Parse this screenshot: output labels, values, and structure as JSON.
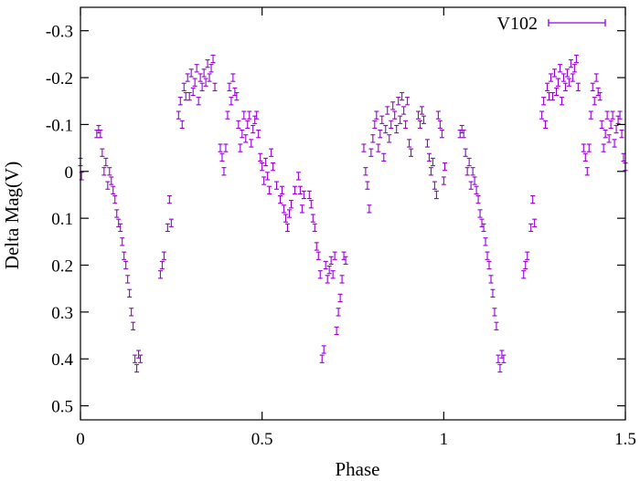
{
  "chart_data": {
    "type": "scatter",
    "xlabel": "Phase",
    "ylabel": "Delta Mag(V)",
    "xlim": [
      0,
      1.5
    ],
    "ylim": [
      -0.35,
      0.53
    ],
    "y_inverted": true,
    "xticks": [
      0,
      0.5,
      1,
      1.5
    ],
    "xtick_labels": [
      "0",
      "0.5",
      "1",
      "1.5"
    ],
    "yticks": [
      -0.3,
      -0.2,
      -0.1,
      0,
      0.1,
      0.2,
      0.3,
      0.4,
      0.5
    ],
    "ytick_labels": [
      "-0.3",
      "-0.2",
      "-0.1",
      "0",
      "0.1",
      "0.2",
      "0.3",
      "0.4",
      "0.5"
    ],
    "grid": false,
    "legend_position": "top-right",
    "error_bar": 0.008,
    "series": [
      {
        "name": "V102",
        "color": "#9400d3",
        "marker": "errorbar",
        "points": [
          [
            0.0,
            -0.02
          ],
          [
            0.003,
            0.01
          ],
          [
            0.045,
            -0.08
          ],
          [
            0.05,
            -0.09
          ],
          [
            0.055,
            -0.08
          ],
          [
            0.06,
            -0.04
          ],
          [
            0.065,
            0.0
          ],
          [
            0.07,
            -0.02
          ],
          [
            0.075,
            0.03
          ],
          [
            0.08,
            0.0
          ],
          [
            0.085,
            0.02
          ],
          [
            0.09,
            0.04
          ],
          [
            0.095,
            0.06
          ],
          [
            0.1,
            0.09
          ],
          [
            0.105,
            0.11
          ],
          [
            0.11,
            0.12
          ],
          [
            0.115,
            0.15
          ],
          [
            0.12,
            0.18
          ],
          [
            0.125,
            0.2
          ],
          [
            0.13,
            0.23
          ],
          [
            0.135,
            0.26
          ],
          [
            0.14,
            0.3
          ],
          [
            0.145,
            0.33
          ],
          [
            0.15,
            0.4
          ],
          [
            0.155,
            0.42
          ],
          [
            0.16,
            0.39
          ],
          [
            0.165,
            0.4
          ],
          [
            0.22,
            0.22
          ],
          [
            0.225,
            0.2
          ],
          [
            0.23,
            0.18
          ],
          [
            0.24,
            0.12
          ],
          [
            0.245,
            0.06
          ],
          [
            0.25,
            0.11
          ],
          [
            0.27,
            -0.12
          ],
          [
            0.275,
            -0.15
          ],
          [
            0.28,
            -0.1
          ],
          [
            0.285,
            -0.18
          ],
          [
            0.29,
            -0.16
          ],
          [
            0.295,
            -0.2
          ],
          [
            0.3,
            -0.16
          ],
          [
            0.305,
            -0.21
          ],
          [
            0.31,
            -0.17
          ],
          [
            0.315,
            -0.19
          ],
          [
            0.32,
            -0.22
          ],
          [
            0.325,
            -0.15
          ],
          [
            0.33,
            -0.2
          ],
          [
            0.335,
            -0.18
          ],
          [
            0.34,
            -0.21
          ],
          [
            0.345,
            -0.19
          ],
          [
            0.35,
            -0.23
          ],
          [
            0.355,
            -0.2
          ],
          [
            0.36,
            -0.22
          ],
          [
            0.365,
            -0.24
          ],
          [
            0.37,
            -0.18
          ],
          [
            0.385,
            -0.05
          ],
          [
            0.39,
            -0.03
          ],
          [
            0.395,
            0.0
          ],
          [
            0.4,
            -0.05
          ],
          [
            0.405,
            -0.12
          ],
          [
            0.41,
            -0.18
          ],
          [
            0.415,
            -0.15
          ],
          [
            0.42,
            -0.2
          ],
          [
            0.425,
            -0.17
          ],
          [
            0.43,
            -0.16
          ],
          [
            0.435,
            -0.1
          ],
          [
            0.44,
            -0.05
          ],
          [
            0.445,
            -0.08
          ],
          [
            0.45,
            -0.12
          ],
          [
            0.455,
            -0.07
          ],
          [
            0.46,
            -0.1
          ],
          [
            0.465,
            -0.12
          ],
          [
            0.47,
            -0.06
          ],
          [
            0.475,
            -0.09
          ],
          [
            0.48,
            -0.11
          ],
          [
            0.485,
            -0.12
          ],
          [
            0.49,
            -0.08
          ],
          [
            0.495,
            -0.03
          ],
          [
            0.5,
            -0.01
          ],
          [
            0.505,
            0.02
          ],
          [
            0.51,
            -0.02
          ],
          [
            0.515,
            0.01
          ],
          [
            0.52,
            0.04
          ],
          [
            0.525,
            -0.04
          ],
          [
            0.53,
            -0.01
          ],
          [
            0.54,
            0.03
          ],
          [
            0.55,
            0.06
          ],
          [
            0.555,
            0.04
          ],
          [
            0.56,
            0.08
          ],
          [
            0.565,
            0.1
          ],
          [
            0.57,
            0.12
          ],
          [
            0.575,
            0.09
          ],
          [
            0.58,
            0.07
          ],
          [
            0.59,
            0.04
          ],
          [
            0.6,
            0.01
          ],
          [
            0.605,
            0.04
          ],
          [
            0.61,
            0.08
          ],
          [
            0.615,
            0.05
          ],
          [
            0.63,
            0.05
          ],
          [
            0.635,
            0.07
          ],
          [
            0.64,
            0.1
          ],
          [
            0.645,
            0.12
          ],
          [
            0.65,
            0.16
          ],
          [
            0.655,
            0.18
          ],
          [
            0.66,
            0.22
          ],
          [
            0.665,
            0.4
          ],
          [
            0.67,
            0.38
          ],
          [
            0.675,
            0.2
          ],
          [
            0.68,
            0.23
          ],
          [
            0.685,
            0.21
          ],
          [
            0.69,
            0.19
          ],
          [
            0.695,
            0.22
          ],
          [
            0.7,
            0.18
          ],
          [
            0.705,
            0.34
          ],
          [
            0.71,
            0.3
          ],
          [
            0.715,
            0.27
          ],
          [
            0.72,
            0.23
          ],
          [
            0.725,
            0.18
          ],
          [
            0.73,
            0.19
          ],
          [
            0.78,
            -0.05
          ],
          [
            0.785,
            0.0
          ],
          [
            0.79,
            0.03
          ],
          [
            0.795,
            0.08
          ],
          [
            0.8,
            -0.04
          ],
          [
            0.805,
            -0.07
          ],
          [
            0.81,
            -0.1
          ],
          [
            0.815,
            -0.12
          ],
          [
            0.82,
            -0.05
          ],
          [
            0.825,
            -0.08
          ],
          [
            0.83,
            -0.11
          ],
          [
            0.835,
            -0.03
          ],
          [
            0.84,
            -0.09
          ],
          [
            0.845,
            -0.13
          ],
          [
            0.85,
            -0.07
          ],
          [
            0.855,
            -0.1
          ],
          [
            0.86,
            -0.14
          ],
          [
            0.865,
            -0.12
          ],
          [
            0.87,
            -0.09
          ],
          [
            0.875,
            -0.15
          ],
          [
            0.88,
            -0.11
          ],
          [
            0.885,
            -0.16
          ],
          [
            0.89,
            -0.13
          ],
          [
            0.895,
            -0.1
          ],
          [
            0.9,
            -0.15
          ],
          [
            0.905,
            -0.06
          ],
          [
            0.91,
            -0.04
          ],
          [
            0.93,
            -0.12
          ],
          [
            0.935,
            -0.1
          ],
          [
            0.94,
            -0.13
          ],
          [
            0.945,
            -0.11
          ],
          [
            0.955,
            -0.06
          ],
          [
            0.96,
            -0.03
          ],
          [
            0.965,
            0.0
          ],
          [
            0.97,
            -0.02
          ],
          [
            0.975,
            0.03
          ],
          [
            0.98,
            0.05
          ],
          [
            0.985,
            -0.12
          ],
          [
            0.99,
            -0.1
          ],
          [
            0.995,
            -0.08
          ],
          [
            1.0,
            0.02
          ],
          [
            1.003,
            -0.01
          ],
          [
            1.045,
            -0.08
          ],
          [
            1.05,
            -0.09
          ],
          [
            1.055,
            -0.08
          ],
          [
            1.06,
            -0.04
          ],
          [
            1.065,
            0.0
          ],
          [
            1.07,
            -0.02
          ],
          [
            1.075,
            0.03
          ],
          [
            1.08,
            0.0
          ],
          [
            1.085,
            0.02
          ],
          [
            1.09,
            0.04
          ],
          [
            1.095,
            0.06
          ],
          [
            1.1,
            0.09
          ],
          [
            1.105,
            0.11
          ],
          [
            1.11,
            0.12
          ],
          [
            1.115,
            0.15
          ],
          [
            1.12,
            0.18
          ],
          [
            1.125,
            0.2
          ],
          [
            1.13,
            0.23
          ],
          [
            1.135,
            0.26
          ],
          [
            1.14,
            0.3
          ],
          [
            1.145,
            0.33
          ],
          [
            1.15,
            0.4
          ],
          [
            1.155,
            0.42
          ],
          [
            1.16,
            0.39
          ],
          [
            1.165,
            0.4
          ],
          [
            1.22,
            0.22
          ],
          [
            1.225,
            0.2
          ],
          [
            1.23,
            0.18
          ],
          [
            1.24,
            0.12
          ],
          [
            1.245,
            0.06
          ],
          [
            1.25,
            0.11
          ],
          [
            1.27,
            -0.12
          ],
          [
            1.275,
            -0.15
          ],
          [
            1.28,
            -0.1
          ],
          [
            1.285,
            -0.18
          ],
          [
            1.29,
            -0.16
          ],
          [
            1.295,
            -0.2
          ],
          [
            1.3,
            -0.16
          ],
          [
            1.305,
            -0.21
          ],
          [
            1.31,
            -0.17
          ],
          [
            1.315,
            -0.19
          ],
          [
            1.32,
            -0.22
          ],
          [
            1.325,
            -0.15
          ],
          [
            1.33,
            -0.2
          ],
          [
            1.335,
            -0.18
          ],
          [
            1.34,
            -0.21
          ],
          [
            1.345,
            -0.19
          ],
          [
            1.35,
            -0.23
          ],
          [
            1.355,
            -0.2
          ],
          [
            1.36,
            -0.22
          ],
          [
            1.365,
            -0.24
          ],
          [
            1.37,
            -0.18
          ],
          [
            1.385,
            -0.05
          ],
          [
            1.39,
            -0.03
          ],
          [
            1.395,
            0.0
          ],
          [
            1.4,
            -0.05
          ],
          [
            1.405,
            -0.12
          ],
          [
            1.41,
            -0.18
          ],
          [
            1.415,
            -0.15
          ],
          [
            1.42,
            -0.2
          ],
          [
            1.425,
            -0.17
          ],
          [
            1.43,
            -0.16
          ],
          [
            1.435,
            -0.1
          ],
          [
            1.44,
            -0.05
          ],
          [
            1.445,
            -0.08
          ],
          [
            1.45,
            -0.12
          ],
          [
            1.455,
            -0.07
          ],
          [
            1.46,
            -0.1
          ],
          [
            1.465,
            -0.12
          ],
          [
            1.47,
            -0.06
          ],
          [
            1.475,
            -0.09
          ],
          [
            1.48,
            -0.11
          ],
          [
            1.485,
            -0.12
          ],
          [
            1.49,
            -0.08
          ],
          [
            1.495,
            -0.03
          ],
          [
            1.5,
            -0.01
          ]
        ]
      }
    ]
  }
}
